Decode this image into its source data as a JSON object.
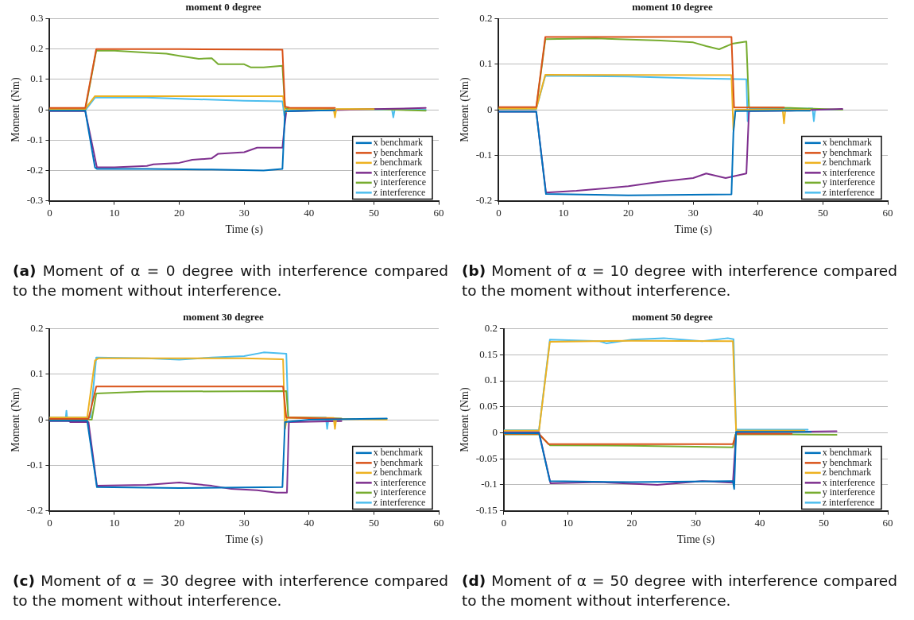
{
  "chart_data": [
    {
      "type": "line",
      "title": "moment 0 degree",
      "xlabel": "Time (s)",
      "ylabel": "Moment (Nm)",
      "xlim": [
        0,
        60
      ],
      "xticks": [
        0,
        10,
        20,
        30,
        40,
        50,
        60
      ],
      "ylim": [
        -0.3,
        0.3
      ],
      "yticks": [
        -0.3,
        -0.2,
        -0.1,
        0,
        0.1,
        0.2,
        0.3
      ],
      "grid": "y",
      "legend": "bottom right",
      "annotations": [
        "(a) Moment of α = 0 degree with interference compared to the moment without interference."
      ],
      "series": [
        {
          "name": "x benchmark",
          "color": "#0072bd",
          "x": [
            0,
            5.5,
            7,
            7.3,
            15,
            25,
            33,
            35.9,
            36.3,
            40,
            44
          ],
          "values": [
            -0.003,
            -0.003,
            -0.19,
            -0.195,
            -0.195,
            -0.197,
            -0.2,
            -0.195,
            -0.005,
            -0.003,
            -0.002
          ]
        },
        {
          "name": "y benchmark",
          "color": "#d95319",
          "x": [
            0,
            5.5,
            7.2,
            20,
            35.9,
            36.3,
            37,
            44
          ],
          "values": [
            0.006,
            0.006,
            0.2,
            0.2,
            0.198,
            0.01,
            0.007,
            0.006
          ]
        },
        {
          "name": "z benchmark",
          "color": "#edb120",
          "x": [
            0,
            5.5,
            7,
            36,
            36.3,
            37,
            43.8,
            44,
            44.2,
            50
          ],
          "values": [
            0.003,
            0.003,
            0.045,
            0.045,
            -0.01,
            0.003,
            0.003,
            -0.025,
            0.002,
            0.002
          ]
        },
        {
          "name": "x interference",
          "color": "#7e2f8e",
          "x": [
            0,
            5.5,
            7.3,
            10,
            15,
            16,
            20,
            22,
            25,
            26,
            30,
            32,
            35.9,
            36.2,
            36.5,
            40,
            50,
            58
          ],
          "values": [
            -0.004,
            -0.004,
            -0.19,
            -0.19,
            -0.185,
            -0.18,
            -0.175,
            -0.165,
            -0.16,
            -0.145,
            -0.14,
            -0.125,
            -0.125,
            -0.06,
            -0.005,
            -0.003,
            0.002,
            0.006
          ]
        },
        {
          "name": "y interference",
          "color": "#77ac30",
          "x": [
            0,
            5.5,
            7.2,
            10,
            15,
            18,
            20,
            23,
            25,
            26,
            30,
            31,
            33,
            35.9,
            36.3,
            40,
            50,
            58
          ],
          "values": [
            0,
            0,
            0.195,
            0.195,
            0.188,
            0.185,
            0.178,
            0.168,
            0.17,
            0.15,
            0.15,
            0.14,
            0.14,
            0.145,
            0.005,
            0,
            0.002,
            -0.003
          ]
        },
        {
          "name": "z interference",
          "color": "#4dbeee",
          "x": [
            0,
            5.5,
            7,
            15,
            22,
            30,
            35.9,
            36.2,
            36.5,
            40,
            52.8,
            53,
            53.2,
            58
          ],
          "values": [
            -0.002,
            -0.002,
            0.04,
            0.04,
            0.035,
            0.03,
            0.028,
            -0.02,
            0,
            0,
            0,
            -0.025,
            0,
            0
          ]
        }
      ]
    },
    {
      "type": "line",
      "title": "moment 10 degree",
      "xlabel": "Time (s)",
      "ylabel": "Moment (Nm)",
      "xlim": [
        0,
        60
      ],
      "xticks": [
        0,
        10,
        20,
        30,
        40,
        50,
        60
      ],
      "ylim": [
        -0.2,
        0.2
      ],
      "yticks": [
        -0.2,
        -0.1,
        0,
        0.1,
        0.2
      ],
      "grid": "y",
      "legend": "bottom right",
      "annotations": [
        "(b) Moment of α = 10 degree with interference compared to the moment without interference."
      ],
      "series": [
        {
          "name": "x benchmark",
          "color": "#0072bd",
          "x": [
            0,
            5.8,
            7.3,
            20,
            35.9,
            36.2,
            36.5,
            44,
            48
          ],
          "values": [
            -0.004,
            -0.004,
            -0.185,
            -0.188,
            -0.186,
            -0.05,
            -0.003,
            -0.002,
            -0.002
          ]
        },
        {
          "name": "y benchmark",
          "color": "#d95319",
          "x": [
            0,
            5.8,
            7.2,
            35.9,
            36.3,
            44
          ],
          "values": [
            0.006,
            0.006,
            0.16,
            0.16,
            0.005,
            0.005
          ]
        },
        {
          "name": "z benchmark",
          "color": "#edb120",
          "x": [
            0,
            5.8,
            7.2,
            35.9,
            36.2,
            36.5,
            43.8,
            44,
            44.2,
            48
          ],
          "values": [
            0.003,
            0.003,
            0.077,
            0.076,
            -0.045,
            0,
            0,
            -0.03,
            0,
            0
          ]
        },
        {
          "name": "x interference",
          "color": "#7e2f8e",
          "x": [
            0,
            5.8,
            7.3,
            12,
            17,
            20,
            25,
            30,
            32,
            35,
            38.2,
            38.6,
            45,
            53
          ],
          "values": [
            -0.004,
            -0.004,
            -0.182,
            -0.178,
            -0.172,
            -0.168,
            -0.158,
            -0.15,
            -0.14,
            -0.15,
            -0.14,
            -0.003,
            -0.002,
            0.002
          ]
        },
        {
          "name": "y interference",
          "color": "#77ac30",
          "x": [
            0,
            5.8,
            7.2,
            15,
            25,
            30,
            32,
            34,
            36,
            38.2,
            38.6,
            45,
            53
          ],
          "values": [
            0.003,
            0.003,
            0.155,
            0.157,
            0.152,
            0.148,
            0.14,
            0.133,
            0.145,
            0.15,
            0.005,
            0.004,
            0
          ]
        },
        {
          "name": "z interference",
          "color": "#4dbeee",
          "x": [
            0,
            5.8,
            7.2,
            20,
            30,
            38.2,
            38.4,
            38.7,
            48.4,
            48.6,
            48.8,
            53
          ],
          "values": [
            0.002,
            0.002,
            0.075,
            0.073,
            0.069,
            0.067,
            -0.025,
            0.003,
            0.003,
            -0.025,
            0,
            0
          ]
        }
      ]
    },
    {
      "type": "line",
      "title": "moment 30 degree",
      "xlabel": "Time (s)",
      "ylabel": "Moment (Nm)",
      "xlim": [
        0,
        60
      ],
      "xticks": [
        0,
        10,
        20,
        30,
        40,
        50,
        60
      ],
      "ylim": [
        -0.2,
        0.2
      ],
      "yticks": [
        -0.2,
        -0.1,
        0,
        0.1,
        0.2
      ],
      "grid": "y",
      "legend": "bottom right",
      "annotations": [
        "(c) Moment of α = 30 degree with interference compared to the moment without interference."
      ],
      "series": [
        {
          "name": "x benchmark",
          "color": "#0072bd",
          "x": [
            0,
            5.8,
            7.3,
            20,
            35.9,
            36.3,
            40,
            52
          ],
          "values": [
            -0.002,
            -0.002,
            -0.148,
            -0.15,
            -0.148,
            -0.005,
            0,
            0.003
          ]
        },
        {
          "name": "y benchmark",
          "color": "#d95319",
          "x": [
            0,
            6,
            7.2,
            36,
            36.5,
            45
          ],
          "values": [
            0.002,
            0.002,
            0.073,
            0.073,
            0.005,
            0.002
          ]
        },
        {
          "name": "z benchmark",
          "color": "#edb120",
          "x": [
            0,
            5.8,
            7,
            7.5,
            30,
            36,
            36.3,
            36.6,
            43.8,
            44,
            44.2,
            52
          ],
          "values": [
            0.005,
            0.005,
            0.13,
            0.135,
            0.135,
            0.133,
            -0.02,
            0.005,
            0.004,
            -0.02,
            0.002,
            0
          ]
        },
        {
          "name": "x interference",
          "color": "#7e2f8e",
          "x": [
            0,
            3,
            3.2,
            6,
            7.3,
            15,
            20,
            25,
            28,
            32,
            35,
            36.6,
            36.9,
            45
          ],
          "values": [
            -0.003,
            -0.003,
            -0.005,
            -0.005,
            -0.145,
            -0.143,
            -0.138,
            -0.145,
            -0.152,
            -0.155,
            -0.16,
            -0.16,
            -0.005,
            -0.003
          ]
        },
        {
          "name": "y interference",
          "color": "#77ac30",
          "x": [
            0,
            6.5,
            7.2,
            15,
            36.5,
            36.8,
            45
          ],
          "values": [
            0,
            0,
            0.058,
            0.062,
            0.063,
            0.005,
            0.003
          ]
        },
        {
          "name": "z interference",
          "color": "#4dbeee",
          "x": [
            0,
            2.5,
            2.6,
            2.7,
            6.3,
            7.2,
            15,
            20,
            25,
            30,
            33,
            36.5,
            36.8,
            42.6,
            42.8,
            43,
            47
          ],
          "values": [
            0.005,
            0.005,
            0.02,
            0.005,
            0.005,
            0.137,
            0.135,
            0.132,
            0.137,
            0.14,
            0.148,
            0.145,
            0.005,
            0.005,
            -0.02,
            0.002,
            0.002
          ]
        }
      ]
    },
    {
      "type": "line",
      "title": "moment 50 degree",
      "xlabel": "Time (s)",
      "ylabel": "Moment (Nm)",
      "xlim": [
        0,
        60
      ],
      "xticks": [
        0,
        10,
        20,
        30,
        40,
        50,
        60
      ],
      "ylim": [
        -0.15,
        0.2
      ],
      "yticks": [
        -0.15,
        -0.1,
        -0.05,
        0,
        0.05,
        0.1,
        0.15,
        0.2
      ],
      "grid": "y",
      "legend": "bottom right",
      "annotations": [
        "(d) Moment of α = 50 degree with interference compared to the moment without interference."
      ],
      "series": [
        {
          "name": "x benchmark",
          "color": "#0072bd",
          "x": [
            0,
            5.5,
            7.2,
            20,
            35.8,
            36,
            36.3,
            45,
            48
          ],
          "values": [
            -0.001,
            -0.001,
            -0.093,
            -0.095,
            -0.093,
            -0.108,
            0.002,
            0.002,
            0.002
          ]
        },
        {
          "name": "y benchmark",
          "color": "#d95319",
          "x": [
            0,
            5.5,
            7,
            35.8,
            36.3,
            45
          ],
          "values": [
            -0.002,
            -0.002,
            -0.022,
            -0.022,
            -0.002,
            -0.002
          ]
        },
        {
          "name": "z benchmark",
          "color": "#edb120",
          "x": [
            0,
            5.5,
            7.2,
            20,
            35.8,
            36.3,
            47
          ],
          "values": [
            0.004,
            0.004,
            0.175,
            0.177,
            0.176,
            0.004,
            0.004
          ]
        },
        {
          "name": "x interference",
          "color": "#7e2f8e",
          "x": [
            0,
            5.5,
            7.3,
            15,
            24,
            31,
            35.8,
            36.3,
            45,
            52
          ],
          "values": [
            0.001,
            0.001,
            -0.097,
            -0.095,
            -0.1,
            -0.093,
            -0.096,
            0.001,
            0.002,
            0.003
          ]
        },
        {
          "name": "y interference",
          "color": "#77ac30",
          "x": [
            0,
            5.5,
            7.2,
            20,
            30,
            35.8,
            36.2,
            45,
            52
          ],
          "values": [
            -0.003,
            -0.003,
            -0.024,
            -0.025,
            -0.027,
            -0.028,
            -0.003,
            -0.003,
            -0.004
          ]
        },
        {
          "name": "z interference",
          "color": "#4dbeee",
          "x": [
            0,
            5.5,
            7.2,
            15,
            16,
            20,
            25,
            31,
            35,
            35.9,
            36.3,
            47.5
          ],
          "values": [
            0.005,
            0.005,
            0.179,
            0.176,
            0.172,
            0.179,
            0.182,
            0.176,
            0.182,
            0.18,
            0.006,
            0.006
          ]
        }
      ]
    }
  ]
}
